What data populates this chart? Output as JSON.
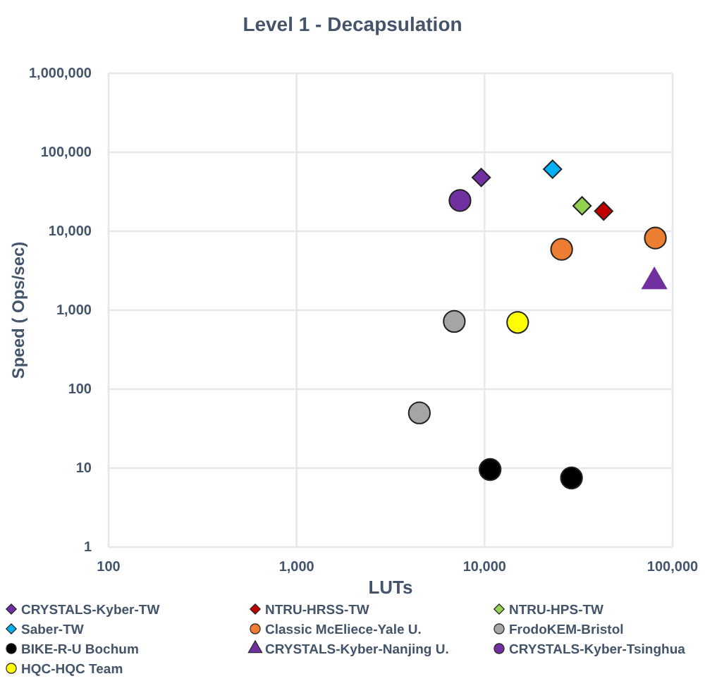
{
  "chart_data": {
    "type": "scatter",
    "title": "Level 1 - Decapsulation",
    "xlabel": "LUTs",
    "ylabel": "Speed ( Ops/sec)",
    "log": "xy",
    "grid": true,
    "legend": "bottom",
    "xlim": [
      100,
      100000
    ],
    "xticks": [
      {
        "value": 100,
        "label": "100"
      },
      {
        "value": 1000,
        "label": "1,000"
      },
      {
        "value": 10000,
        "label": "10,000"
      },
      {
        "value": 100000,
        "label": "100,000"
      }
    ],
    "ylim": [
      1,
      1000000
    ],
    "yticks": [
      {
        "value": 1,
        "label": "1"
      },
      {
        "value": 10,
        "label": "10"
      },
      {
        "value": 100,
        "label": "100"
      },
      {
        "value": 1000,
        "label": "1,000"
      },
      {
        "value": 10000,
        "label": "10,000"
      },
      {
        "value": 100000,
        "label": "100,000"
      },
      {
        "value": 1000000,
        "label": "1,000,000"
      }
    ],
    "series": [
      {
        "name": "CRYSTALS-Kyber-TW",
        "color": "#7030a0",
        "marker": "diamond",
        "x": [
          9600
        ],
        "values": [
          48000
        ]
      },
      {
        "name": "NTRU-HRSS-TW",
        "color": "#c00000",
        "marker": "diamond",
        "x": [
          43000
        ],
        "values": [
          18000
        ]
      },
      {
        "name": "NTRU-HPS-TW",
        "color": "#92d050",
        "marker": "diamond",
        "x": [
          33000
        ],
        "values": [
          21000
        ]
      },
      {
        "name": "Saber-TW",
        "color": "#00b0f0",
        "marker": "diamond",
        "x": [
          23000
        ],
        "values": [
          61000
        ]
      },
      {
        "name": "Classic McEliece-Yale U.",
        "color": "#ed7d31",
        "marker": "circle",
        "x": [
          25700,
          81000
        ],
        "values": [
          5900,
          8200
        ]
      },
      {
        "name": "FrodoKEM-Bristol",
        "color": "#a5a5a5",
        "marker": "circle",
        "x": [
          6900,
          4500
        ],
        "values": [
          720,
          50
        ]
      },
      {
        "name": "BIKE-R-U Bochum",
        "color": "#000000",
        "marker": "circle",
        "x": [
          10700,
          29000
        ],
        "values": [
          9.6,
          7.5
        ]
      },
      {
        "name": "CRYSTALS-Kyber-Nanjing U.",
        "color": "#7030a0",
        "marker": "triangle",
        "x": [
          80000
        ],
        "values": [
          2300
        ]
      },
      {
        "name": "CRYSTALS-Kyber-Tsinghua",
        "color": "#7030a0",
        "marker": "circle",
        "x": [
          7400
        ],
        "values": [
          24500
        ]
      },
      {
        "name": "HQC-HQC Team",
        "color": "#ffff00",
        "marker": "circle",
        "x": [
          15000
        ],
        "values": [
          700
        ]
      }
    ]
  }
}
